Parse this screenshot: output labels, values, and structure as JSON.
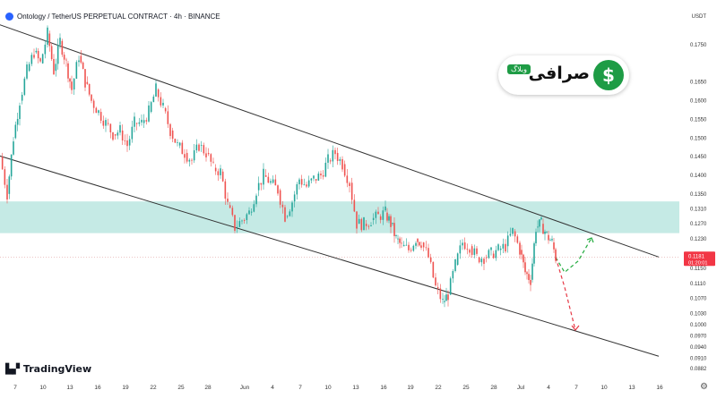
{
  "header": {
    "title": "Ontology / TetherUS PERPETUAL CONTRACT · 4h · BINANCE",
    "currency": "USDT"
  },
  "branding": {
    "tradingview": "TradingView",
    "watermark_name": "صرافی",
    "watermark_tag": "وبلاگ",
    "watermark_symbol": "$"
  },
  "price_label": {
    "value": "0.1181",
    "countdown": "01:20:01",
    "color": "#f23645"
  },
  "colors": {
    "up": "#26a69a",
    "down": "#ef5350",
    "zone": "#b2e3dc",
    "channel": "#333333",
    "projection_up": "#22ab3e",
    "projection_down": "#e63946"
  },
  "chart_data": {
    "type": "candlestick",
    "symbol": "Ontology / TetherUS PERPETUAL CONTRACT",
    "interval": "4h",
    "exchange": "BINANCE",
    "y_ticks": [
      "0.1750",
      "0.1650",
      "0.1600",
      "0.1550",
      "0.1500",
      "0.1450",
      "0.1400",
      "0.1350",
      "0.1310",
      "0.1270",
      "0.1230",
      "0.1150",
      "0.1110",
      "0.1070",
      "0.1030",
      "0.1000",
      "0.0970",
      "0.0940",
      "0.0910",
      "0.0882"
    ],
    "x_ticks": [
      "7",
      "10",
      "13",
      "16",
      "19",
      "22",
      "25",
      "28",
      "Jun",
      "4",
      "7",
      "10",
      "13",
      "16",
      "19",
      "22",
      "25",
      "28",
      "Jul",
      "4",
      "7",
      "10",
      "13",
      "16"
    ],
    "current_price": 0.1181,
    "series": [
      {
        "name": "close_path",
        "points": [
          [
            0,
            0.145
          ],
          [
            8,
            0.135
          ],
          [
            15,
            0.15
          ],
          [
            22,
            0.16
          ],
          [
            30,
            0.168
          ],
          [
            38,
            0.173
          ],
          [
            45,
            0.17
          ],
          [
            53,
            0.178
          ],
          [
            60,
            0.168
          ],
          [
            67,
            0.176
          ],
          [
            74,
            0.17
          ],
          [
            80,
            0.163
          ],
          [
            88,
            0.172
          ],
          [
            95,
            0.165
          ],
          [
            102,
            0.16
          ],
          [
            110,
            0.157
          ],
          [
            118,
            0.154
          ],
          [
            126,
            0.151
          ],
          [
            134,
            0.152
          ],
          [
            142,
            0.148
          ],
          [
            150,
            0.154
          ],
          [
            158,
            0.154
          ],
          [
            166,
            0.157
          ],
          [
            174,
            0.163
          ],
          [
            182,
            0.158
          ],
          [
            190,
            0.152
          ],
          [
            198,
            0.148
          ],
          [
            206,
            0.146
          ],
          [
            214,
            0.144
          ],
          [
            222,
            0.148
          ],
          [
            230,
            0.146
          ],
          [
            238,
            0.142
          ],
          [
            246,
            0.141
          ],
          [
            254,
            0.132
          ],
          [
            262,
            0.126
          ],
          [
            270,
            0.128
          ],
          [
            278,
            0.13
          ],
          [
            286,
            0.136
          ],
          [
            294,
            0.14
          ],
          [
            302,
            0.138
          ],
          [
            310,
            0.136
          ],
          [
            318,
            0.129
          ],
          [
            326,
            0.133
          ],
          [
            334,
            0.139
          ],
          [
            342,
            0.137
          ],
          [
            350,
            0.139
          ],
          [
            358,
            0.14
          ],
          [
            366,
            0.144
          ],
          [
            374,
            0.146
          ],
          [
            382,
            0.143
          ],
          [
            390,
            0.138
          ],
          [
            398,
            0.127
          ],
          [
            406,
            0.127
          ],
          [
            414,
            0.128
          ],
          [
            422,
            0.129
          ],
          [
            430,
            0.13
          ],
          [
            436,
            0.127
          ],
          [
            442,
            0.123
          ],
          [
            448,
            0.121
          ],
          [
            456,
            0.12
          ],
          [
            464,
            0.123
          ],
          [
            470,
            0.122
          ],
          [
            478,
            0.118
          ],
          [
            486,
            0.11
          ],
          [
            494,
            0.106
          ],
          [
            500,
            0.108
          ],
          [
            508,
            0.116
          ],
          [
            516,
            0.122
          ],
          [
            524,
            0.121
          ],
          [
            532,
            0.118
          ],
          [
            540,
            0.118
          ],
          [
            548,
            0.119
          ],
          [
            556,
            0.12
          ],
          [
            564,
            0.121
          ],
          [
            572,
            0.125
          ],
          [
            580,
            0.12
          ],
          [
            586,
            0.114
          ],
          [
            592,
            0.112
          ],
          [
            598,
            0.126
          ],
          [
            604,
            0.127
          ],
          [
            610,
            0.124
          ],
          [
            616,
            0.122
          ],
          [
            620,
            0.118
          ]
        ]
      }
    ],
    "support_resistance_zone": [
      0.1245,
      0.133
    ],
    "channel_upper": [
      [
        -120,
        0.1905
      ],
      [
        735,
        0.1181
      ]
    ],
    "channel_lower": [
      [
        -80,
        0.151
      ],
      [
        735,
        0.0915
      ]
    ],
    "projection_up": [
      [
        620,
        0.118
      ],
      [
        630,
        0.114
      ],
      [
        645,
        0.117
      ],
      [
        660,
        0.1232
      ]
    ],
    "projection_down": [
      [
        620,
        0.118
      ],
      [
        630,
        0.11
      ],
      [
        642,
        0.0985
      ]
    ],
    "grid": false
  }
}
